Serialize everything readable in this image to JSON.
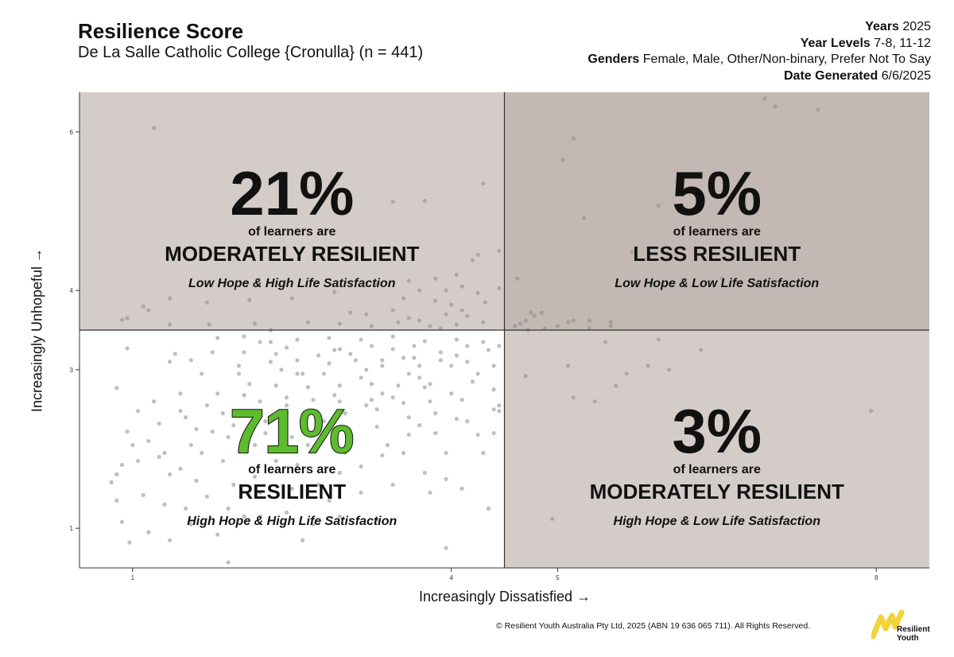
{
  "header": {
    "title": "Resilience Score",
    "subtitle": "De La Salle Catholic College {Cronulla} (n = 441)",
    "meta": [
      {
        "key": "Years",
        "value": "2025"
      },
      {
        "key": "Year Levels",
        "value": "7-8, 11-12"
      },
      {
        "key": "Genders",
        "value": "Female, Male, Other/Non-binary, Prefer Not To Say"
      },
      {
        "key": "Date Generated",
        "value": "6/6/2025"
      }
    ]
  },
  "footer": {
    "copyright": "© Resilient Youth Australia Pty Ltd, 2025 (ABN 19 636 065 711). All Rights Reserved.",
    "logo_text_1": "Resilient",
    "logo_text_2": "Youth",
    "logo_color": "#f2d43a"
  },
  "chart_data": {
    "type": "scatter",
    "title": "Resilience Score",
    "xlabel": "Increasingly Dissatisfied →",
    "ylabel": "Increasingly Unhopeful →",
    "xlim": [
      0.5,
      8.5
    ],
    "ylim": [
      0.5,
      6.5
    ],
    "x_ticks": [
      1,
      4,
      5,
      8
    ],
    "y_ticks": [
      1,
      3,
      4,
      6
    ],
    "x_divider": 4.5,
    "y_divider": 3.5,
    "quadrants": [
      {
        "position": "top-left",
        "percent": "21%",
        "line1": "of learners are",
        "category": "MODERATELY RESILIENT",
        "desc": "Low Hope & High Life Satisfaction",
        "fill": "#d4ccc9",
        "percent_color": "#111111"
      },
      {
        "position": "top-right",
        "percent": "5%",
        "line1": "of learners are",
        "category": "LESS RESILIENT",
        "desc": "Low Hope & Low Life Satisfaction",
        "fill": "#c3b8b3",
        "percent_color": "#111111"
      },
      {
        "position": "bottom-left",
        "percent": "71%",
        "line1": "of learners are",
        "category": "RESILIENT",
        "desc": "High Hope & High Life Satisfaction",
        "fill": "#ffffff",
        "percent_color": "#5dbb2e"
      },
      {
        "position": "bottom-right",
        "percent": "3%",
        "line1": "of learners are",
        "category": "MODERATELY RESILIENT",
        "desc": "High Hope & Low Life Satisfaction",
        "fill": "#d4ccc9",
        "percent_color": "#111111"
      }
    ],
    "points": [
      [
        1.2,
        6.05
      ],
      [
        6.95,
        6.42
      ],
      [
        7.05,
        6.32
      ],
      [
        7.45,
        6.28
      ],
      [
        5.15,
        5.92
      ],
      [
        5.05,
        5.65
      ],
      [
        4.3,
        5.35
      ],
      [
        3.75,
        5.13
      ],
      [
        3.45,
        5.12
      ],
      [
        5.95,
        5.07
      ],
      [
        5.25,
        4.91
      ],
      [
        4.25,
        4.45
      ],
      [
        4.45,
        4.5
      ],
      [
        5.7,
        4.49
      ],
      [
        4.2,
        4.38
      ],
      [
        4.05,
        4.2
      ],
      [
        3.85,
        4.15
      ],
      [
        4.1,
        4.05
      ],
      [
        3.95,
        4.0
      ],
      [
        4.45,
        4.03
      ],
      [
        4.25,
        3.97
      ],
      [
        4.32,
        3.85
      ],
      [
        3.6,
        4.12
      ],
      [
        3.3,
        4.08
      ],
      [
        2.9,
        3.98
      ],
      [
        2.5,
        3.9
      ],
      [
        2.1,
        3.88
      ],
      [
        1.7,
        3.85
      ],
      [
        1.35,
        3.9
      ],
      [
        1.1,
        3.8
      ],
      [
        1.15,
        3.75
      ],
      [
        0.95,
        3.65
      ],
      [
        0.9,
        3.63
      ],
      [
        3.05,
        3.72
      ],
      [
        3.2,
        3.7
      ],
      [
        3.5,
        3.6
      ],
      [
        3.7,
        3.62
      ],
      [
        3.8,
        3.55
      ],
      [
        3.95,
        3.7
      ],
      [
        4.1,
        3.75
      ],
      [
        3.45,
        3.75
      ],
      [
        3.6,
        3.65
      ],
      [
        3.9,
        3.52
      ],
      [
        4.05,
        3.57
      ],
      [
        4.15,
        3.68
      ],
      [
        4.3,
        3.6
      ],
      [
        2.65,
        3.6
      ],
      [
        2.95,
        3.58
      ],
      [
        3.25,
        3.55
      ],
      [
        2.15,
        3.58
      ],
      [
        1.72,
        3.57
      ],
      [
        1.35,
        3.57
      ],
      [
        2.3,
        3.5
      ],
      [
        4.6,
        3.55
      ],
      [
        4.7,
        3.62
      ],
      [
        4.75,
        3.72
      ],
      [
        4.85,
        3.72
      ],
      [
        4.72,
        3.5
      ],
      [
        4.65,
        3.58
      ],
      [
        4.88,
        3.52
      ],
      [
        5.0,
        3.55
      ],
      [
        5.1,
        3.6
      ],
      [
        5.15,
        3.62
      ],
      [
        5.3,
        3.62
      ],
      [
        5.3,
        3.52
      ],
      [
        5.5,
        3.6
      ],
      [
        5.5,
        3.55
      ],
      [
        6.55,
        4.15
      ],
      [
        6.9,
        4.05
      ],
      [
        4.62,
        4.15
      ],
      [
        4.78,
        3.68
      ],
      [
        3.55,
        3.9
      ],
      [
        3.85,
        3.87
      ],
      [
        3.7,
        4.0
      ],
      [
        4.0,
        3.82
      ],
      [
        0.95,
        3.27
      ],
      [
        1.35,
        3.1
      ],
      [
        1.4,
        3.2
      ],
      [
        1.55,
        3.12
      ],
      [
        1.65,
        2.95
      ],
      [
        1.75,
        3.22
      ],
      [
        2.05,
        3.22
      ],
      [
        2.2,
        3.35
      ],
      [
        2.45,
        3.28
      ],
      [
        2.75,
        3.18
      ],
      [
        2.95,
        3.26
      ],
      [
        3.05,
        3.2
      ],
      [
        3.25,
        3.3
      ],
      [
        3.45,
        3.26
      ],
      [
        3.55,
        3.15
      ],
      [
        3.7,
        3.05
      ],
      [
        3.9,
        3.22
      ],
      [
        4.05,
        3.18
      ],
      [
        4.15,
        3.1
      ],
      [
        4.35,
        3.25
      ],
      [
        4.4,
        3.05
      ],
      [
        4.45,
        3.3
      ],
      [
        2.4,
        3.0
      ],
      [
        2.55,
        2.95
      ],
      [
        2.8,
        2.95
      ],
      [
        3.15,
        2.9
      ],
      [
        3.35,
        3.05
      ],
      [
        3.6,
        2.95
      ],
      [
        3.8,
        2.82
      ],
      [
        4.0,
        2.7
      ],
      [
        4.2,
        2.85
      ],
      [
        4.4,
        2.75
      ],
      [
        0.85,
        2.77
      ],
      [
        1.05,
        2.48
      ],
      [
        0.95,
        2.22
      ],
      [
        1.25,
        2.32
      ],
      [
        1.45,
        2.48
      ],
      [
        1.55,
        2.05
      ],
      [
        1.75,
        2.22
      ],
      [
        1.85,
        2.45
      ],
      [
        2.05,
        2.68
      ],
      [
        2.25,
        2.35
      ],
      [
        2.45,
        2.55
      ],
      [
        2.6,
        2.4
      ],
      [
        2.8,
        2.35
      ],
      [
        3.0,
        2.45
      ],
      [
        3.2,
        2.55
      ],
      [
        3.45,
        2.65
      ],
      [
        3.6,
        2.4
      ],
      [
        3.85,
        2.45
      ],
      [
        4.05,
        2.38
      ],
      [
        4.25,
        2.18
      ],
      [
        4.4,
        2.5
      ],
      [
        4.45,
        2.48
      ],
      [
        4.45,
        2.55
      ],
      [
        1.0,
        2.05
      ],
      [
        1.05,
        1.85
      ],
      [
        1.25,
        1.9
      ],
      [
        1.35,
        1.68
      ],
      [
        1.45,
        1.75
      ],
      [
        1.65,
        1.95
      ],
      [
        1.85,
        1.85
      ],
      [
        2.15,
        1.65
      ],
      [
        2.35,
        1.85
      ],
      [
        2.55,
        1.8
      ],
      [
        2.75,
        1.55
      ],
      [
        2.95,
        1.7
      ],
      [
        3.15,
        1.78
      ],
      [
        3.35,
        1.92
      ],
      [
        3.55,
        1.95
      ],
      [
        3.75,
        1.7
      ],
      [
        3.95,
        1.62
      ],
      [
        0.8,
        1.58
      ],
      [
        0.85,
        1.68
      ],
      [
        0.9,
        1.8
      ],
      [
        1.1,
        1.42
      ],
      [
        1.3,
        1.3
      ],
      [
        1.5,
        1.25
      ],
      [
        1.7,
        1.4
      ],
      [
        1.9,
        1.25
      ],
      [
        2.05,
        1.15
      ],
      [
        2.2,
        1.15
      ],
      [
        2.45,
        1.2
      ],
      [
        2.7,
        1.05
      ],
      [
        2.95,
        1.15
      ],
      [
        3.3,
        1.1
      ],
      [
        4.35,
        1.25
      ],
      [
        0.85,
        1.35
      ],
      [
        0.9,
        1.08
      ],
      [
        1.15,
        0.95
      ],
      [
        1.35,
        0.85
      ],
      [
        0.97,
        0.82
      ],
      [
        2.6,
        0.85
      ],
      [
        1.55,
        1.05
      ],
      [
        1.8,
        0.92
      ],
      [
        3.95,
        0.75
      ],
      [
        1.9,
        0.57
      ],
      [
        1.8,
        3.4
      ],
      [
        2.05,
        3.42
      ],
      [
        2.3,
        3.35
      ],
      [
        2.55,
        3.38
      ],
      [
        2.85,
        3.4
      ],
      [
        3.15,
        3.38
      ],
      [
        3.45,
        3.42
      ],
      [
        3.75,
        3.36
      ],
      [
        4.05,
        3.38
      ],
      [
        4.3,
        3.35
      ],
      [
        2.0,
        3.05
      ],
      [
        2.3,
        3.1
      ],
      [
        2.55,
        3.12
      ],
      [
        2.85,
        3.08
      ],
      [
        3.1,
        3.12
      ],
      [
        3.35,
        3.12
      ],
      [
        3.65,
        3.15
      ],
      [
        3.9,
        3.12
      ],
      [
        2.1,
        2.82
      ],
      [
        2.35,
        2.8
      ],
      [
        2.65,
        2.78
      ],
      [
        2.95,
        2.8
      ],
      [
        3.25,
        2.82
      ],
      [
        3.5,
        2.8
      ],
      [
        3.75,
        2.78
      ],
      [
        2.2,
        2.6
      ],
      [
        2.45,
        2.65
      ],
      [
        2.7,
        2.62
      ],
      [
        2.95,
        2.6
      ],
      [
        3.25,
        2.62
      ],
      [
        3.55,
        2.58
      ],
      [
        3.8,
        2.6
      ],
      [
        4.1,
        2.62
      ],
      [
        1.95,
        2.3
      ],
      [
        2.25,
        2.2
      ],
      [
        2.5,
        2.15
      ],
      [
        2.75,
        2.25
      ],
      [
        3.05,
        2.2
      ],
      [
        3.3,
        2.28
      ],
      [
        3.6,
        2.18
      ],
      [
        3.85,
        2.2
      ],
      [
        4.15,
        2.35
      ],
      [
        1.6,
        2.25
      ],
      [
        1.7,
        2.55
      ],
      [
        1.45,
        2.7
      ],
      [
        1.2,
        2.6
      ],
      [
        1.5,
        2.4
      ],
      [
        1.15,
        2.1
      ],
      [
        1.3,
        1.95
      ],
      [
        1.6,
        1.6
      ],
      [
        1.95,
        1.55
      ],
      [
        2.2,
        1.45
      ],
      [
        2.5,
        1.5
      ],
      [
        2.85,
        1.35
      ],
      [
        3.15,
        1.45
      ],
      [
        3.45,
        1.55
      ],
      [
        3.8,
        1.45
      ],
      [
        4.1,
        1.5
      ],
      [
        4.3,
        1.95
      ],
      [
        4.4,
        2.2
      ],
      [
        2.6,
        2.95
      ],
      [
        2.9,
        2.68
      ],
      [
        3.35,
        2.7
      ],
      [
        3.7,
        2.9
      ],
      [
        4.25,
        2.95
      ],
      [
        2.0,
        2.95
      ],
      [
        1.8,
        2.7
      ],
      [
        3.3,
        2.5
      ],
      [
        3.7,
        2.3
      ],
      [
        2.9,
        3.25
      ],
      [
        3.2,
        3.0
      ],
      [
        3.65,
        3.3
      ],
      [
        2.35,
        3.2
      ],
      [
        4.15,
        3.3
      ],
      [
        2.45,
        2.45
      ],
      [
        2.15,
        2.05
      ],
      [
        3.0,
        1.95
      ],
      [
        3.4,
        2.05
      ],
      [
        2.65,
        2.05
      ],
      [
        1.9,
        2.15
      ],
      [
        3.95,
        1.95
      ],
      [
        4.0,
        3.05
      ],
      [
        4.7,
        2.92
      ],
      [
        5.1,
        3.05
      ],
      [
        5.45,
        3.35
      ],
      [
        5.65,
        2.95
      ],
      [
        5.95,
        3.38
      ],
      [
        6.35,
        3.25
      ],
      [
        5.15,
        2.65
      ],
      [
        5.35,
        2.6
      ],
      [
        5.85,
        3.05
      ],
      [
        7.95,
        2.48
      ],
      [
        4.95,
        1.12
      ],
      [
        6.05,
        3.0
      ],
      [
        5.55,
        2.8
      ]
    ]
  }
}
